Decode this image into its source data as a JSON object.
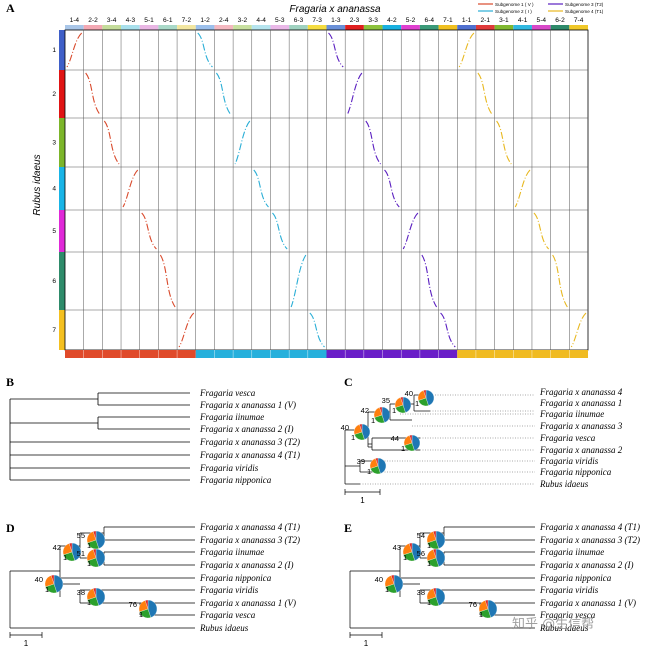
{
  "panelA": {
    "label": "A",
    "title": "Fragaria x ananassa",
    "y_title": "Rubus idaeus",
    "legend": [
      {
        "label": "Subgenome 1 ( V )",
        "color": "#d94a2c"
      },
      {
        "label": "Subgenome 2 ( I )",
        "color": "#2aaed6"
      },
      {
        "label": "Subgenome 3 (T2)",
        "color": "#5a1fc0"
      },
      {
        "label": "Subgenome 4 (T1)",
        "color": "#e8b820"
      }
    ],
    "columns": [
      {
        "label": "1-4",
        "color": "#a9c6e8"
      },
      {
        "label": "2-2",
        "color": "#f3a8b3"
      },
      {
        "label": "3-4",
        "color": "#c4dc9a"
      },
      {
        "label": "4-3",
        "color": "#a8e0ec"
      },
      {
        "label": "5-1",
        "color": "#e9b6e4"
      },
      {
        "label": "6-1",
        "color": "#a9d9c8"
      },
      {
        "label": "7-2",
        "color": "#f2e6a0"
      },
      {
        "label": "1-2",
        "color": "#9cc0ec"
      },
      {
        "label": "2-4",
        "color": "#f4b8c0"
      },
      {
        "label": "3-2",
        "color": "#c8e0a0"
      },
      {
        "label": "4-4",
        "color": "#b5e4ee"
      },
      {
        "label": "5-3",
        "color": "#eab8e8"
      },
      {
        "label": "6-3",
        "color": "#9fd2c0"
      },
      {
        "label": "7-3",
        "color": "#f5dc40"
      },
      {
        "label": "1-3",
        "color": "#6a90d8"
      },
      {
        "label": "2-3",
        "color": "#e01e1e"
      },
      {
        "label": "3-3",
        "color": "#8cc23c"
      },
      {
        "label": "4-2",
        "color": "#18b0e0"
      },
      {
        "label": "5-2",
        "color": "#e040d0"
      },
      {
        "label": "6-4",
        "color": "#3a9a78"
      },
      {
        "label": "7-1",
        "color": "#f0c020"
      },
      {
        "label": "1-1",
        "color": "#5070d0"
      },
      {
        "label": "2-1",
        "color": "#e03a3a"
      },
      {
        "label": "3-1",
        "color": "#80b830"
      },
      {
        "label": "4-1",
        "color": "#30b8e0"
      },
      {
        "label": "5-4",
        "color": "#d848c8"
      },
      {
        "label": "6-2",
        "color": "#2e8a6a"
      },
      {
        "label": "7-4",
        "color": "#f0c828"
      }
    ],
    "rows": [
      {
        "label": "1",
        "color": "#3f5fc8"
      },
      {
        "label": "2",
        "color": "#e01414"
      },
      {
        "label": "3",
        "color": "#7cb52a"
      },
      {
        "label": "4",
        "color": "#19b4e6"
      },
      {
        "label": "5",
        "color": "#e028d8"
      },
      {
        "label": "6",
        "color": "#2e8b6a"
      },
      {
        "label": "7",
        "color": "#f4c020"
      }
    ],
    "bottom_bar_colors": [
      "#e04a2a",
      "#26b0dc",
      "#6a1ec8",
      "#f0bb22"
    ]
  },
  "panelB": {
    "label": "B",
    "taxa": [
      "Fragaria vesca",
      "Fragaria x ananassa 1 (V)",
      "Fragaria iinumae",
      "Fragaria x ananassa 2 (I)",
      "Fragaria x ananassa 3 (T2)",
      "Fragaria x ananassa 4 (T1)",
      "Fragaria viridis",
      "Fragaria nipponica"
    ]
  },
  "panelC": {
    "label": "C",
    "taxa": [
      "Fragaria x ananassa 4",
      "Fragaria x ananassa 1",
      "Fragaria iinumae",
      "Fragaria x ananassa 3",
      "Fragaria vesca",
      "Fragaria x ananassa 2",
      "Fragaria viridis",
      "Fragaria nipponica",
      "Rubus idaeus"
    ],
    "nodes": [
      {
        "top": "40",
        "bottom": "1"
      },
      {
        "top": "35",
        "bottom": "1"
      },
      {
        "top": "42",
        "bottom": "1"
      },
      {
        "top": "40",
        "bottom": "1"
      },
      {
        "top": "44",
        "bottom": "1"
      },
      {
        "top": "39",
        "bottom": "1"
      }
    ],
    "scale": "1"
  },
  "panelD": {
    "label": "D",
    "taxa": [
      "Fragaria x ananassa 4 (T1)",
      "Fragaria x ananassa 3 (T2)",
      "Fragaria iinumae",
      "Fragaria x ananassa 2 (I)",
      "Fragaria nipponica",
      "Fragaria viridis",
      "Fragaria x ananassa 1 (V)",
      "Fragaria vesca",
      "Rubus idaeus"
    ],
    "nodes": [
      {
        "top": "55",
        "bottom": "1"
      },
      {
        "top": "42",
        "bottom": "1"
      },
      {
        "top": "51",
        "bottom": "1"
      },
      {
        "top": "40",
        "bottom": "1"
      },
      {
        "top": "38",
        "bottom": "1"
      },
      {
        "top": "76",
        "bottom": "1"
      }
    ],
    "scale": "1"
  },
  "panelE": {
    "label": "E",
    "taxa": [
      "Fragaria x ananassa 4 (T1)",
      "Fragaria x ananassa 3 (T2)",
      "Fragaria iinumae",
      "Fragaria x ananassa 2 (I)",
      "Fragaria nipponica",
      "Fragaria viridis",
      "Fragaria x ananassa 1 (V)",
      "Fragaria vesca",
      "Rubus idaeus"
    ],
    "nodes": [
      {
        "top": "54",
        "bottom": "1"
      },
      {
        "top": "43",
        "bottom": "1"
      },
      {
        "top": "56",
        "bottom": "1"
      },
      {
        "top": "40",
        "bottom": "1"
      },
      {
        "top": "38",
        "bottom": "1"
      },
      {
        "top": "76",
        "bottom": "1"
      }
    ],
    "scale": "1"
  },
  "watermark": "知乎 @生信帮",
  "pie_colors": [
    "#1f77b4",
    "#2ca02c",
    "#ff7f0e",
    "#d62728"
  ]
}
